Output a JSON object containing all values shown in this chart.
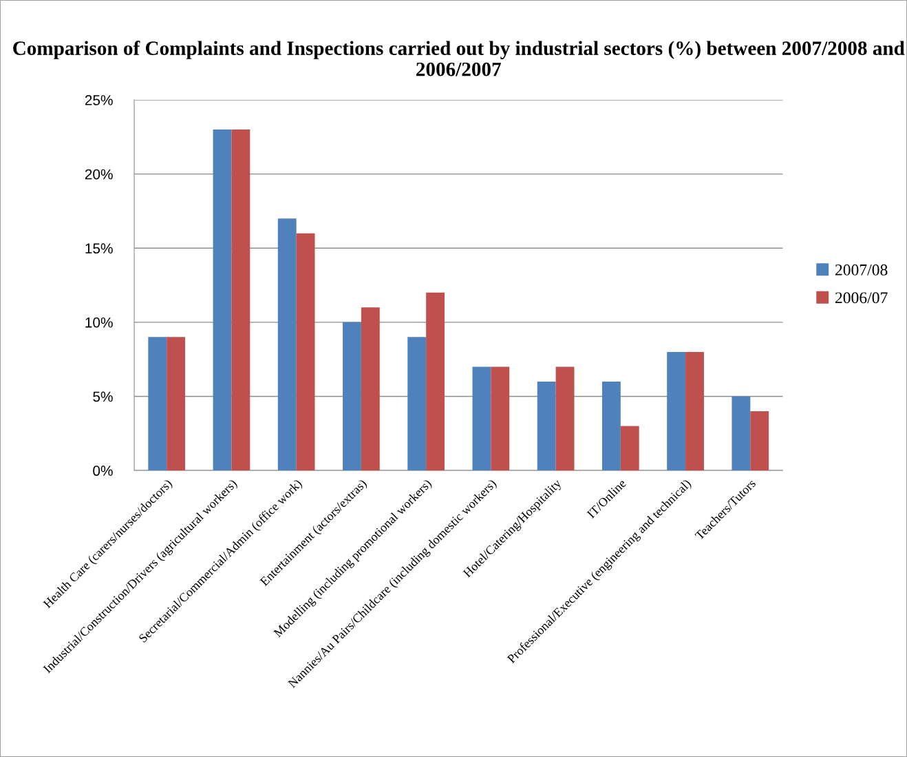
{
  "chart_data": {
    "type": "bar",
    "title": "Comparison of Complaints and Inspections carried out by industrial sectors (%) between 2007/2008 and 2006/2007",
    "categories": [
      "Health Care (carers/nurses/doctors)",
      "Industrial/Construction/Drivers (agricultural workers)",
      "Secretarial/Commercial/Admin (office work)",
      "Entertainment (actors/extras)",
      "Modelling (including promotional workers)",
      "Nannies/Au Pairs/Childcare (including domestic workers)",
      "Hotel/Catering/Hospitality",
      "IT/Online",
      "Professional/Executive (engineering and technical)",
      "Teachers/Tutors"
    ],
    "series": [
      {
        "name": "2007/08",
        "color": "#4f81bd",
        "values": [
          9,
          23,
          17,
          10,
          9,
          7,
          6,
          6,
          8,
          5
        ]
      },
      {
        "name": "2006/07",
        "color": "#c0504d",
        "values": [
          9,
          23,
          16,
          11,
          12,
          7,
          7,
          3,
          8,
          4
        ]
      }
    ],
    "ylim": [
      0,
      25
    ],
    "yticks": [
      {
        "value": 0,
        "label": "0%"
      },
      {
        "value": 5,
        "label": "5%"
      },
      {
        "value": 10,
        "label": "10%"
      },
      {
        "value": 15,
        "label": "15%"
      },
      {
        "value": 20,
        "label": "20%"
      },
      {
        "value": 25,
        "label": "25%"
      }
    ],
    "grid": "y",
    "legend": "right"
  }
}
